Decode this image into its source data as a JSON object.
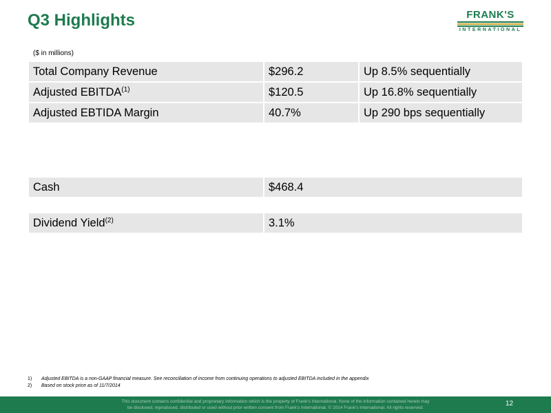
{
  "title": "Q3 Highlights",
  "logo": {
    "word": "FRANK'S",
    "sub": "INTERNATIONAL",
    "colors": {
      "green": "#1e7b4e",
      "gold": "#c9a227"
    }
  },
  "units_note": "($ in millions)",
  "highlights": [
    {
      "metric": "Total Company Revenue",
      "sup": "",
      "value": "$296.2",
      "change": "Up 8.5% sequentially"
    },
    {
      "metric": "Adjusted EBITDA",
      "sup": "(1)",
      "value": "$120.5",
      "change": "Up 16.8% sequentially"
    },
    {
      "metric": "Adjusted EBTIDA Margin",
      "sup": "",
      "value": "40.7%",
      "change": "Up 290 bps sequentially"
    }
  ],
  "cash": {
    "label": "Cash",
    "value": "$468.4"
  },
  "dividend": {
    "label": "Dividend Yield",
    "sup": "(2)",
    "value": "3.1%"
  },
  "footnotes": [
    {
      "num": "1)",
      "text": "Adjusted EBITDA is a non-GAAP financial measure.  See reconciliation of income from continuing operations to adjusted EBITDA included in the appendix"
    },
    {
      "num": "2)",
      "text": "Based on stock price as of 11/7/2014"
    }
  ],
  "footer": {
    "line1": "This document contains confidential and proprietary information which is the property of Frank's International.  None of the information contained herein may",
    "line2": "be disclosed, reproduced, distributed or used without prior written consent from Frank's International. © 2014 Frank's International.  All rights reserved.",
    "page_number": "12",
    "color": "#1e7b4e"
  }
}
